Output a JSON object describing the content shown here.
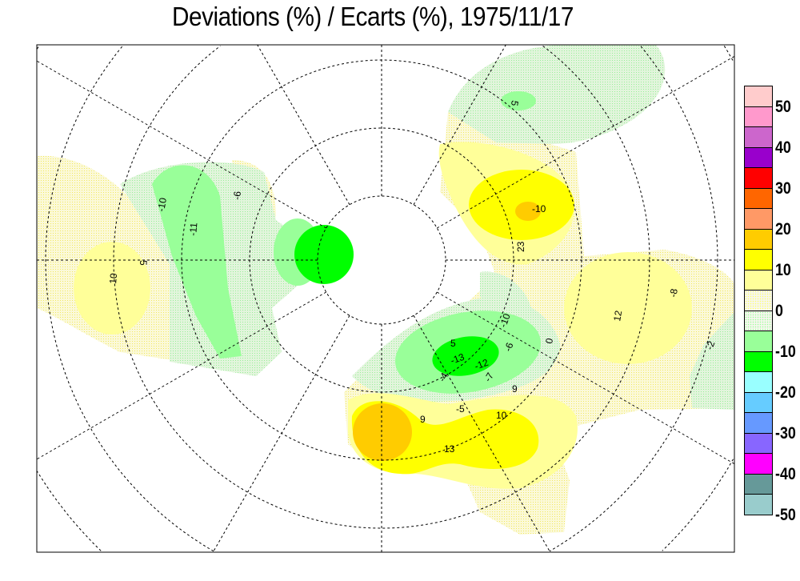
{
  "title": "Deviations (%) / Ecarts (%), 1975/11/17",
  "legend": {
    "classes": [
      {
        "color": "#ffcccc",
        "pattern": "solid"
      },
      {
        "color": "#ff99cc",
        "pattern": "solid"
      },
      {
        "color": "#cc66cc",
        "pattern": "solid"
      },
      {
        "color": "#9900cc",
        "pattern": "solid"
      },
      {
        "color": "#ff0000",
        "pattern": "solid"
      },
      {
        "color": "#ff6600",
        "pattern": "solid"
      },
      {
        "color": "#ff9966",
        "pattern": "solid"
      },
      {
        "color": "#ffcc00",
        "pattern": "solid"
      },
      {
        "color": "#ffff00",
        "pattern": "solid"
      },
      {
        "color": "#ffff99",
        "pattern": "solid"
      },
      {
        "color": "#ffff66",
        "pattern": "dotted"
      },
      {
        "color": "#99ff99",
        "pattern": "dotted"
      },
      {
        "color": "#99ff99",
        "pattern": "solid"
      },
      {
        "color": "#00ff00",
        "pattern": "solid"
      },
      {
        "color": "#99ffff",
        "pattern": "solid"
      },
      {
        "color": "#66ccff",
        "pattern": "solid"
      },
      {
        "color": "#6699ff",
        "pattern": "solid"
      },
      {
        "color": "#8866ff",
        "pattern": "solid"
      },
      {
        "color": "#ff00ff",
        "pattern": "solid"
      },
      {
        "color": "#669999",
        "pattern": "solid"
      },
      {
        "color": "#99cccc",
        "pattern": "solid"
      }
    ],
    "labels": [
      "50",
      "40",
      "30",
      "20",
      "10",
      "0",
      "-10",
      "-20",
      "-30",
      "-40",
      "-50"
    ]
  },
  "map": {
    "projection": "polar stereographic, north pole",
    "contour_labels": [
      "-10",
      "-11",
      "-6",
      "5",
      "10",
      "5",
      "-10",
      "23",
      "5",
      "-13",
      "-12",
      "-6",
      "-10",
      "-7",
      "-4",
      "-5",
      "13",
      "9",
      "10",
      "12",
      "-8",
      "-2",
      "0",
      "9"
    ]
  }
}
